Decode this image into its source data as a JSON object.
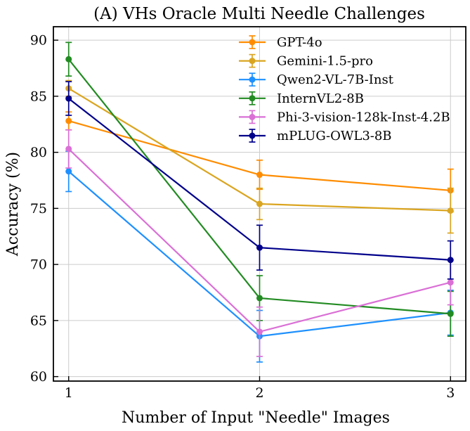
{
  "figure": {
    "background": "#ffffff"
  },
  "chart_data": {
    "type": "line",
    "title": "(A) VHs Oracle Multi Needle Challenges",
    "xlabel": "Number of Input \"Needle\" Images",
    "ylabel": "Accuracy (%)",
    "x": [
      1,
      2,
      3
    ],
    "xtick_labels": [
      "1",
      "2",
      "3"
    ],
    "yticks": [
      60,
      65,
      70,
      75,
      80,
      85,
      90
    ],
    "xlim": [
      0.92,
      3.08
    ],
    "ylim": [
      59.6,
      91.2
    ],
    "grid": true,
    "grid_color": "#cccccc",
    "axis_color": "#000000",
    "legend_position": "upper right",
    "marker": "circle",
    "error_bars": true,
    "series": [
      {
        "name": "GPT-4o",
        "color": "#FF8C00",
        "values": [
          82.8,
          78.0,
          76.6
        ],
        "yerr": [
          0.8,
          1.3,
          1.9
        ]
      },
      {
        "name": "Gemini-1.5-pro",
        "color": "#DAA520",
        "values": [
          85.7,
          75.4,
          74.8
        ],
        "yerr": [
          0.7,
          1.4,
          2.0
        ]
      },
      {
        "name": "Qwen2-VL-7B-Inst",
        "color": "#1E90FF",
        "values": [
          78.3,
          63.6,
          65.7
        ],
        "yerr": [
          1.8,
          2.3,
          2.0
        ]
      },
      {
        "name": "InternVL2-8B",
        "color": "#228B22",
        "values": [
          88.3,
          67.0,
          65.6
        ],
        "yerr": [
          1.5,
          2.0,
          2.0
        ]
      },
      {
        "name": "Phi-3-vision-128k-Inst-4.2B",
        "color": "#DA70D6",
        "values": [
          80.3,
          64.0,
          68.4
        ],
        "yerr": [
          1.7,
          2.2,
          2.0
        ]
      },
      {
        "name": "mPLUG-OWL3-8B",
        "color": "#00008B",
        "values": [
          84.8,
          71.5,
          70.4
        ],
        "yerr": [
          1.5,
          2.0,
          1.7
        ]
      }
    ]
  }
}
